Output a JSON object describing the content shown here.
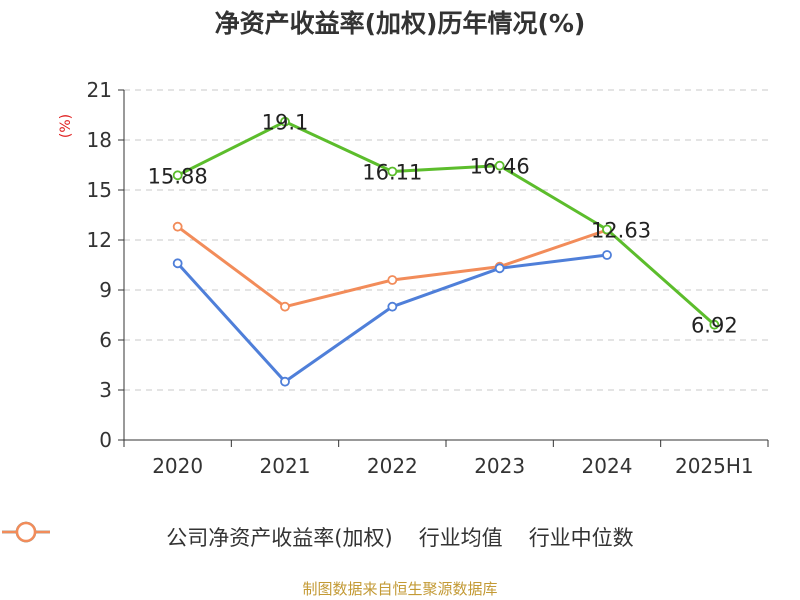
{
  "title": "净资产收益率(加权)历年情况(%)",
  "source": "制图数据来自恒生聚源数据库",
  "colors": {
    "company": "#5cbd2c",
    "industry_avg": "#4f7fd9",
    "industry_median": "#f28c5a",
    "unit": "#e02020",
    "source": "#c39a35"
  },
  "chart_data": {
    "type": "line",
    "ylabel": "(%)",
    "ylim": [
      0,
      21
    ],
    "yticks": [
      0,
      3,
      6,
      9,
      12,
      15,
      18,
      21
    ],
    "categories": [
      "2020",
      "2021",
      "2022",
      "2023",
      "2024",
      "2025H1"
    ],
    "grid": true,
    "legend_position": "bottom",
    "series": [
      {
        "name": "公司净资产收益率(加权)",
        "values": [
          15.88,
          19.1,
          16.11,
          16.46,
          12.63,
          6.92
        ],
        "labels": [
          "15.88",
          "19.1",
          "16.11",
          "16.46",
          "12.63",
          "6.92"
        ],
        "color": "#5cbd2c"
      },
      {
        "name": "行业均值",
        "values": [
          10.6,
          3.5,
          8.0,
          10.3,
          11.1,
          null
        ],
        "color": "#4f7fd9"
      },
      {
        "name": "行业中位数",
        "values": [
          12.8,
          8.0,
          9.6,
          10.4,
          12.6,
          null
        ],
        "color": "#f28c5a"
      }
    ]
  }
}
